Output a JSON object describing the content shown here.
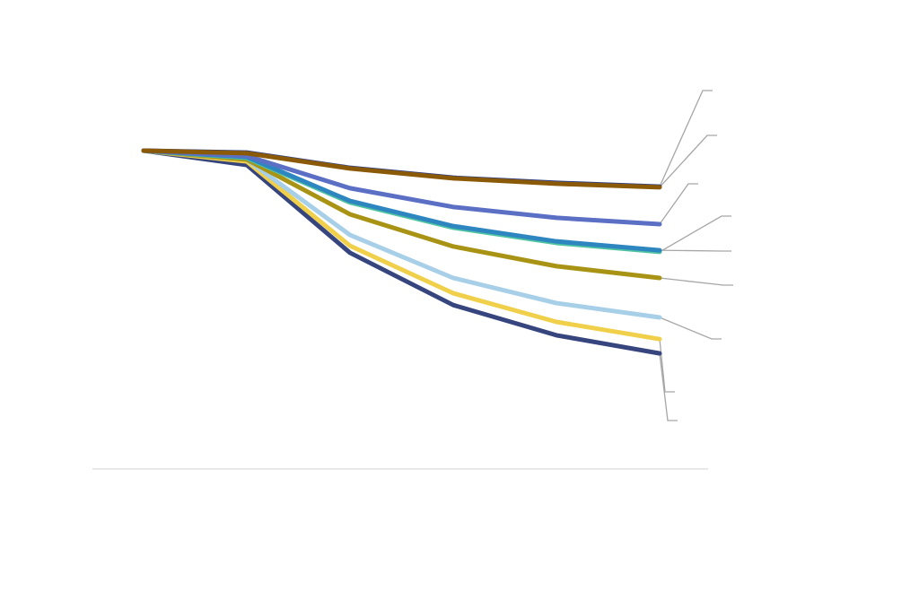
{
  "chart_data": {
    "type": "line",
    "title": "",
    "xlabel": "",
    "ylabel": "",
    "x": [
      0,
      1,
      2,
      3,
      4,
      5
    ],
    "ylim": [
      0,
      100
    ],
    "grid": false,
    "legend": "none",
    "series": [
      {
        "name": "",
        "color": "#2f3f86",
        "values": [
          100,
          99.4,
          94.6,
          91.5,
          89.9,
          88.7
        ]
      },
      {
        "name": "",
        "color": "#8a5a08",
        "values": [
          100,
          99.2,
          94.4,
          91.3,
          89.6,
          88.5
        ]
      },
      {
        "name": "",
        "color": "#5b6fc4",
        "values": [
          100,
          98.3,
          88.2,
          82.3,
          78.9,
          76.9
        ]
      },
      {
        "name": "",
        "color": "#4fc3a0",
        "values": [
          100,
          97.7,
          83.7,
          75.8,
          71.0,
          68.2
        ]
      },
      {
        "name": "",
        "color": "#2e86c1",
        "values": [
          100,
          98.0,
          84.2,
          76.3,
          71.5,
          68.7
        ]
      },
      {
        "name": "",
        "color": "#a89314",
        "values": [
          100,
          97.2,
          80.0,
          69.9,
          63.7,
          60.0
        ]
      },
      {
        "name": "",
        "color": "#a8cfe8",
        "values": [
          100,
          97.2,
          73.5,
          60.0,
          52.1,
          47.6
        ]
      },
      {
        "name": "",
        "color": "#f0d04a",
        "values": [
          100,
          96.6,
          70.1,
          55.2,
          46.2,
          40.8
        ]
      },
      {
        "name": "",
        "color": "#36457e",
        "values": [
          100,
          95.5,
          67.9,
          51.5,
          42.0,
          36.3
        ]
      }
    ]
  }
}
